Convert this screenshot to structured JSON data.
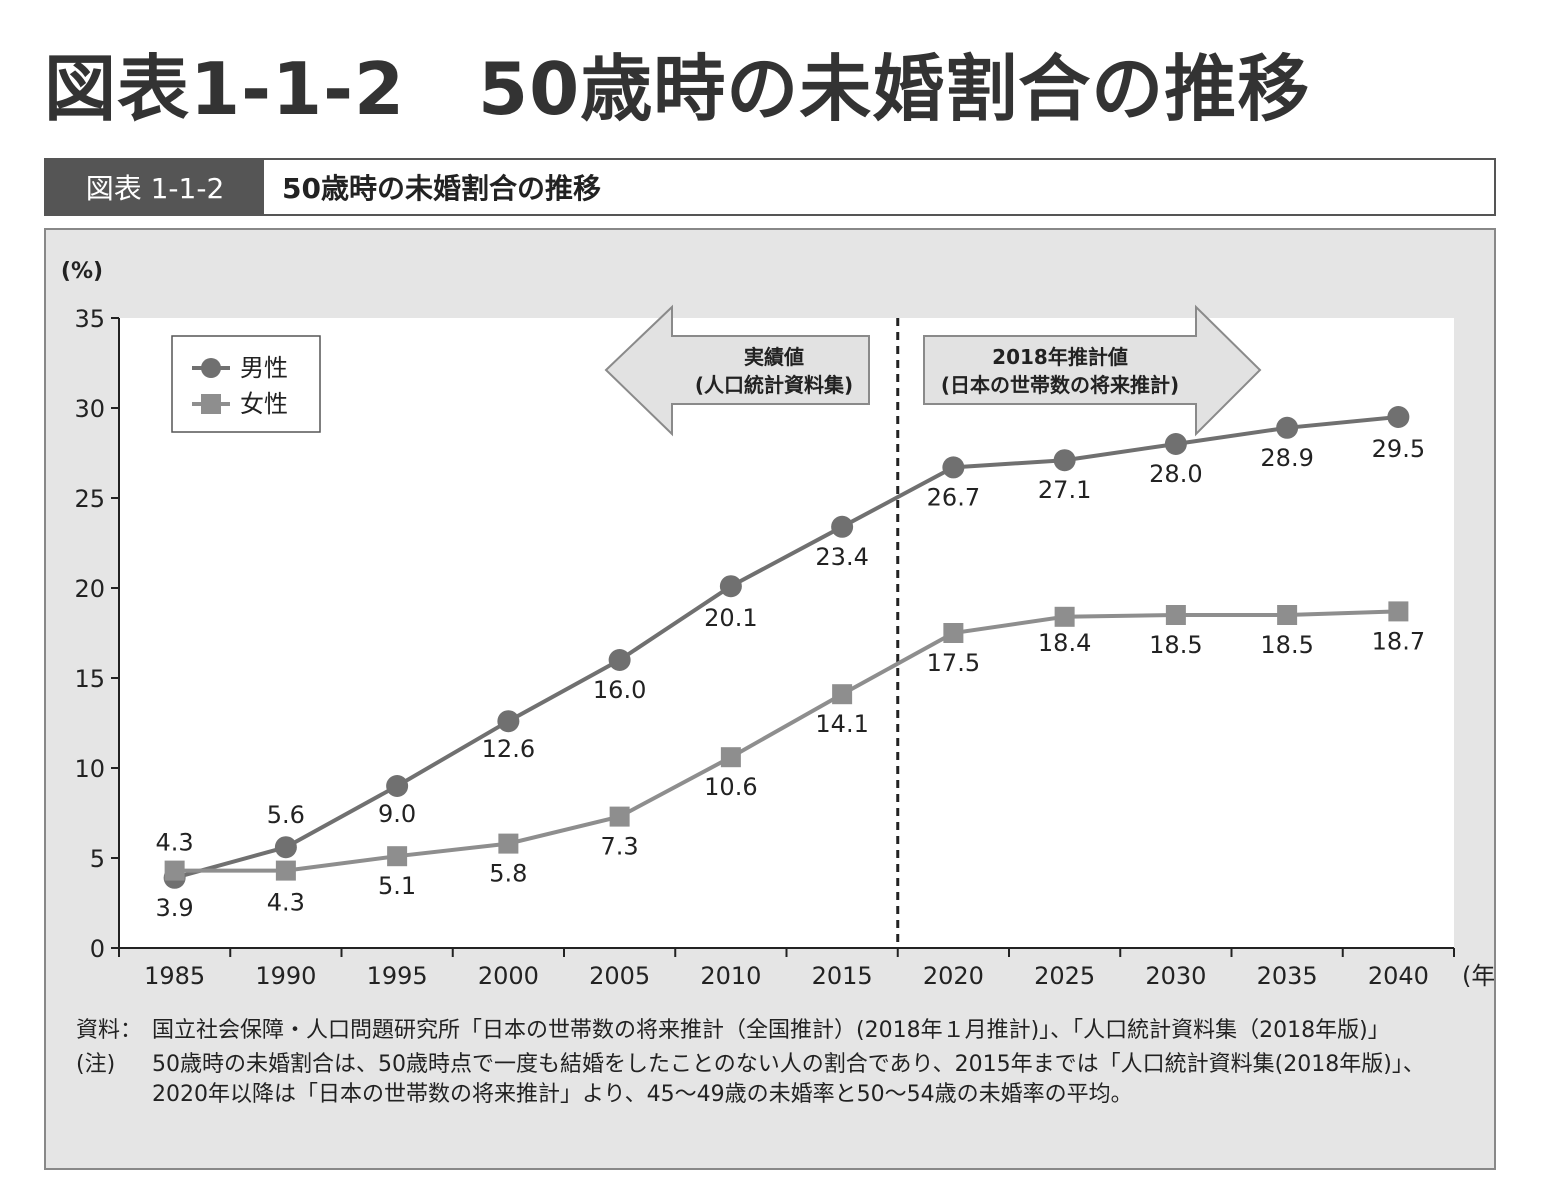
{
  "page_title": "図表1-1-2　50歳時の未婚割合の推移",
  "figure_bar": {
    "tag": "図表 1-1-2",
    "title": "50歳時の未婚割合の推移"
  },
  "arrows": {
    "actual_line1": "実績値",
    "actual_line2": "(人口統計資料集)",
    "projection_line1": "2018年推計値",
    "projection_line2": "(日本の世帯数の将来推計)"
  },
  "notes": {
    "source_head": "資料：",
    "source_text": "国立社会保障・人口問題研究所「日本の世帯数の将来推計（全国推計）(2018年１月推計)」、「人口統計資料集（2018年版)」",
    "note_head": "(注)",
    "note_text": "50歳時の未婚割合は、50歳時点で一度も結婚をしたことのない人の割合であり、2015年までは「人口統計資料集(2018年版)」、2020年以降は「日本の世帯数の将来推計」より、45〜49歳の未婚率と50〜54歳の未婚率の平均。"
  },
  "colors": {
    "men": "#707070",
    "women": "#8e8e8e",
    "plot_bg": "#ffffff",
    "panel_bg": "#e5e5e5",
    "arrow_fill": "#e2e2e2"
  },
  "chart_data": {
    "type": "line",
    "title": "50歳時の未婚割合の推移",
    "ylabel": "(%)",
    "xlabel": "(年)",
    "ylim": [
      0,
      35
    ],
    "yticks": [
      0,
      5,
      10,
      15,
      20,
      25,
      30,
      35
    ],
    "categories": [
      "1985",
      "1990",
      "1995",
      "2000",
      "2005",
      "2010",
      "2015",
      "2020",
      "2025",
      "2030",
      "2035",
      "2040"
    ],
    "divider_after": "2015",
    "legend_position": "top-left",
    "grid": false,
    "series": [
      {
        "name": "男性",
        "marker": "circle",
        "values": [
          3.9,
          5.6,
          9.0,
          12.6,
          16.0,
          20.1,
          23.4,
          26.7,
          27.1,
          28.0,
          28.9,
          29.5
        ]
      },
      {
        "name": "女性",
        "marker": "square",
        "values": [
          4.3,
          4.3,
          5.1,
          5.8,
          7.3,
          10.6,
          14.1,
          17.5,
          18.4,
          18.5,
          18.5,
          18.7
        ]
      }
    ]
  }
}
